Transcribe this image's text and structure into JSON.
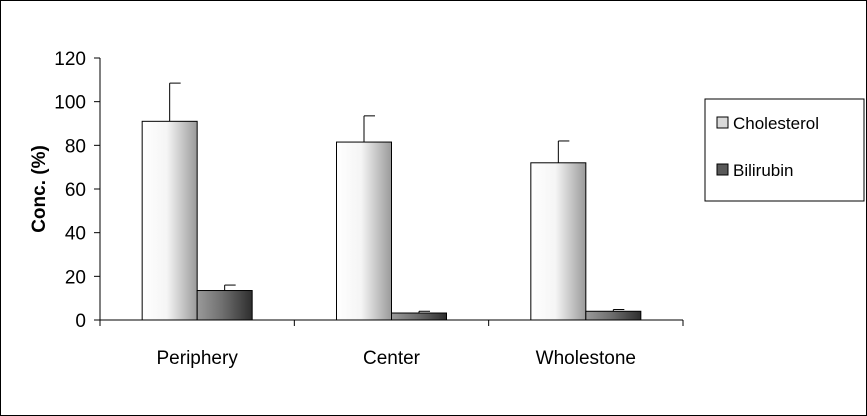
{
  "chart_data": {
    "type": "bar",
    "categories": [
      "Periphery",
      "Center",
      "Wholestone"
    ],
    "series": [
      {
        "name": "Cholesterol",
        "values": [
          91,
          81.5,
          72
        ],
        "errors": [
          17.5,
          12,
          10
        ],
        "color": "#d9d9d9"
      },
      {
        "name": "Bilirubin",
        "values": [
          13.5,
          3.2,
          4.0
        ],
        "errors": [
          2.5,
          0.8,
          0.8
        ],
        "color": "#595959"
      }
    ],
    "xlabel": "",
    "ylabel": "Conc. (%)",
    "ylim": [
      0,
      120
    ],
    "yticks": [
      0,
      20,
      40,
      60,
      80,
      100,
      120
    ],
    "grid": false,
    "legend": "right"
  }
}
